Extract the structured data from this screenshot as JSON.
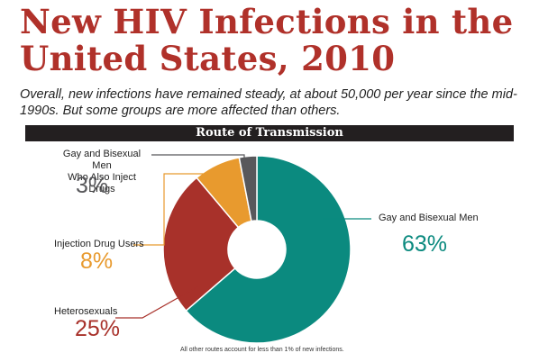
{
  "header": {
    "title": "New HIV Infections in the United States, 2010",
    "subtitle": "Overall, new infections have remained steady, at about 50,000 per year since the mid-1990s. But some groups are more affected than others."
  },
  "section_title": "Route of Transmission",
  "footnote": "All other routes account for less than 1% of new infections.",
  "chart_data": {
    "type": "pie",
    "style": "donut",
    "title": "Route of Transmission",
    "start": "top",
    "direction": "clockwise",
    "slices": [
      {
        "label": "Gay and Bisexual Men",
        "value": 63,
        "display": "63%",
        "color": "#0b8a7f"
      },
      {
        "label": "Heterosexuals",
        "value": 25,
        "display": "25%",
        "color": "#a8312a"
      },
      {
        "label": "Injection Drug Users",
        "value": 8,
        "display": "8%",
        "color": "#e89a2e"
      },
      {
        "label": "Gay and Bisexual Men Who Also Inject Drugs",
        "value": 3,
        "display": "3%",
        "color": "#58585b"
      }
    ]
  },
  "labels": {
    "msm_idu_line1": "Gay and Bisexual Men",
    "msm_idu_line2": "Who Also Inject Drugs"
  }
}
